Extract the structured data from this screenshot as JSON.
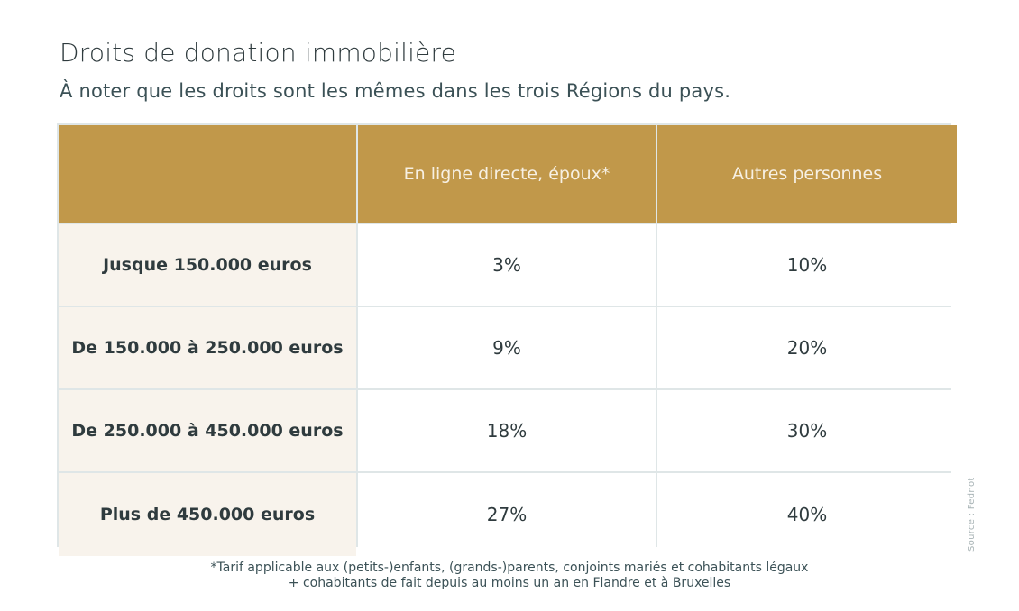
{
  "header": {
    "title": "Droits de donation immobilière",
    "subtitle": "À noter que les droits sont les mêmes dans les trois Régions du pays."
  },
  "table": {
    "columns": [
      "",
      "En ligne directe, époux*",
      "Autres personnes"
    ],
    "rows": [
      {
        "label": "Jusque 150.000 euros",
        "direct": "3%",
        "others": "10%"
      },
      {
        "label": "De 150.000 à 250.000 euros",
        "direct": "9%",
        "others": "20%"
      },
      {
        "label": "De 250.000 à 450.000 euros",
        "direct": "18%",
        "others": "30%"
      },
      {
        "label": "Plus de 450.000 euros",
        "direct": "27%",
        "others": "40%"
      }
    ]
  },
  "footnote": {
    "line1": "*Tarif applicable aux (petits-)enfants, (grands-)parents, conjoints mariés et cohabitants légaux",
    "line2": "+ cohabitants de fait depuis au moins un an en Flandre et à Bruxelles"
  },
  "source": "Source : Fednot",
  "colors": {
    "header_gold": "#c1984a",
    "label_cream": "#f8f3ec",
    "border": "#dfe6e7",
    "text": "#2f3b3e"
  }
}
